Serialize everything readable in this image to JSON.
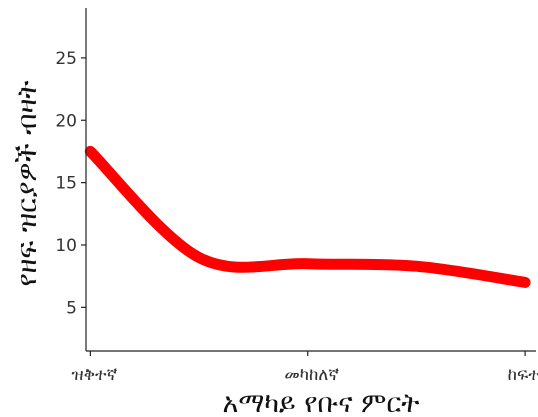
{
  "chart_data": {
    "type": "line",
    "title": "",
    "xlabel": "አማካይ የቡና ምርት",
    "ylabel": "የዘፍ ዝርያዎች ብዛት",
    "categories": [
      "ዝቅተኛ",
      "መካከለኛ",
      "ከፍተኛ"
    ],
    "x": [
      1,
      1.5,
      2,
      2.5,
      3
    ],
    "series": [
      {
        "values": [
          17.5,
          9.0,
          8.5,
          8.3,
          7.0
        ]
      }
    ],
    "xlim": [
      0.98,
      3.05
    ],
    "ylim": [
      1.5,
      29
    ],
    "yticks": [
      5,
      10,
      15,
      20,
      25
    ],
    "grid": false,
    "legend": "none",
    "line_color": "#ff0000",
    "axis_color": "#222222"
  }
}
